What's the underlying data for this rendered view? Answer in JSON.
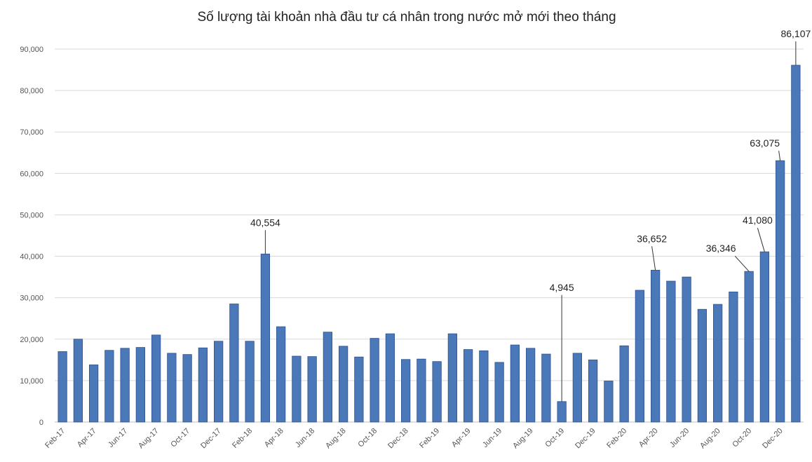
{
  "chart_data": {
    "type": "bar",
    "title": "Số lượng tài khoản nhà đầu tư cá nhân trong nước mở mới theo tháng",
    "categories": [
      "Feb-17",
      null,
      "Apr-17",
      null,
      "Jun-17",
      null,
      "Aug-17",
      null,
      "Oct-17",
      null,
      "Dec-17",
      null,
      "Feb-18",
      null,
      "Apr-18",
      null,
      "Jun-18",
      null,
      "Aug-18",
      null,
      "Oct-18",
      null,
      "Dec-18",
      null,
      "Feb-19",
      null,
      "Apr-19",
      null,
      "Jun-19",
      null,
      "Aug-19",
      null,
      "Oct-19",
      null,
      "Dec-19",
      null,
      "Feb-20",
      null,
      "Apr-20",
      null,
      "Jun-20",
      null,
      "Aug-20",
      null,
      "Oct-20",
      null,
      "Dec-20",
      null
    ],
    "values": [
      17000,
      20000,
      13800,
      17300,
      17800,
      18000,
      21000,
      16600,
      16300,
      17900,
      19500,
      28500,
      19500,
      40554,
      23000,
      15900,
      15800,
      21700,
      18300,
      15700,
      20200,
      21300,
      15100,
      15200,
      14600,
      21300,
      17500,
      17200,
      14400,
      18600,
      17800,
      16400,
      4945,
      16600,
      15000,
      9900,
      18400,
      31800,
      36652,
      34000,
      35000,
      27200,
      28400,
      31400,
      36346,
      41080,
      63075,
      86107
    ],
    "value_labels": [
      null,
      null,
      null,
      null,
      null,
      null,
      null,
      null,
      null,
      null,
      null,
      null,
      null,
      "40,554",
      null,
      null,
      null,
      null,
      null,
      null,
      null,
      null,
      null,
      null,
      null,
      null,
      null,
      null,
      null,
      null,
      null,
      null,
      "4,945",
      null,
      null,
      null,
      null,
      null,
      "36,652",
      null,
      null,
      null,
      null,
      null,
      "36,346",
      "41,080",
      "63,075",
      "86,107"
    ],
    "color": "#4a78b8",
    "ylim": [
      0,
      90000
    ],
    "yticks": [
      0,
      {
        "value": 10000,
        "label": "10,000"
      },
      {
        "value": 20000,
        "label": "20,000"
      },
      {
        "value": 30000,
        "label": "30,000"
      },
      {
        "value": 40000,
        "label": "40,000"
      },
      {
        "value": 50000,
        "label": "50,000"
      },
      {
        "value": 60000,
        "label": "60,000"
      },
      {
        "value": 70000,
        "label": "70,000"
      },
      {
        "value": 80000,
        "label": "80,000"
      },
      {
        "value": 90000,
        "label": "90,000"
      }
    ],
    "grid": true
  }
}
